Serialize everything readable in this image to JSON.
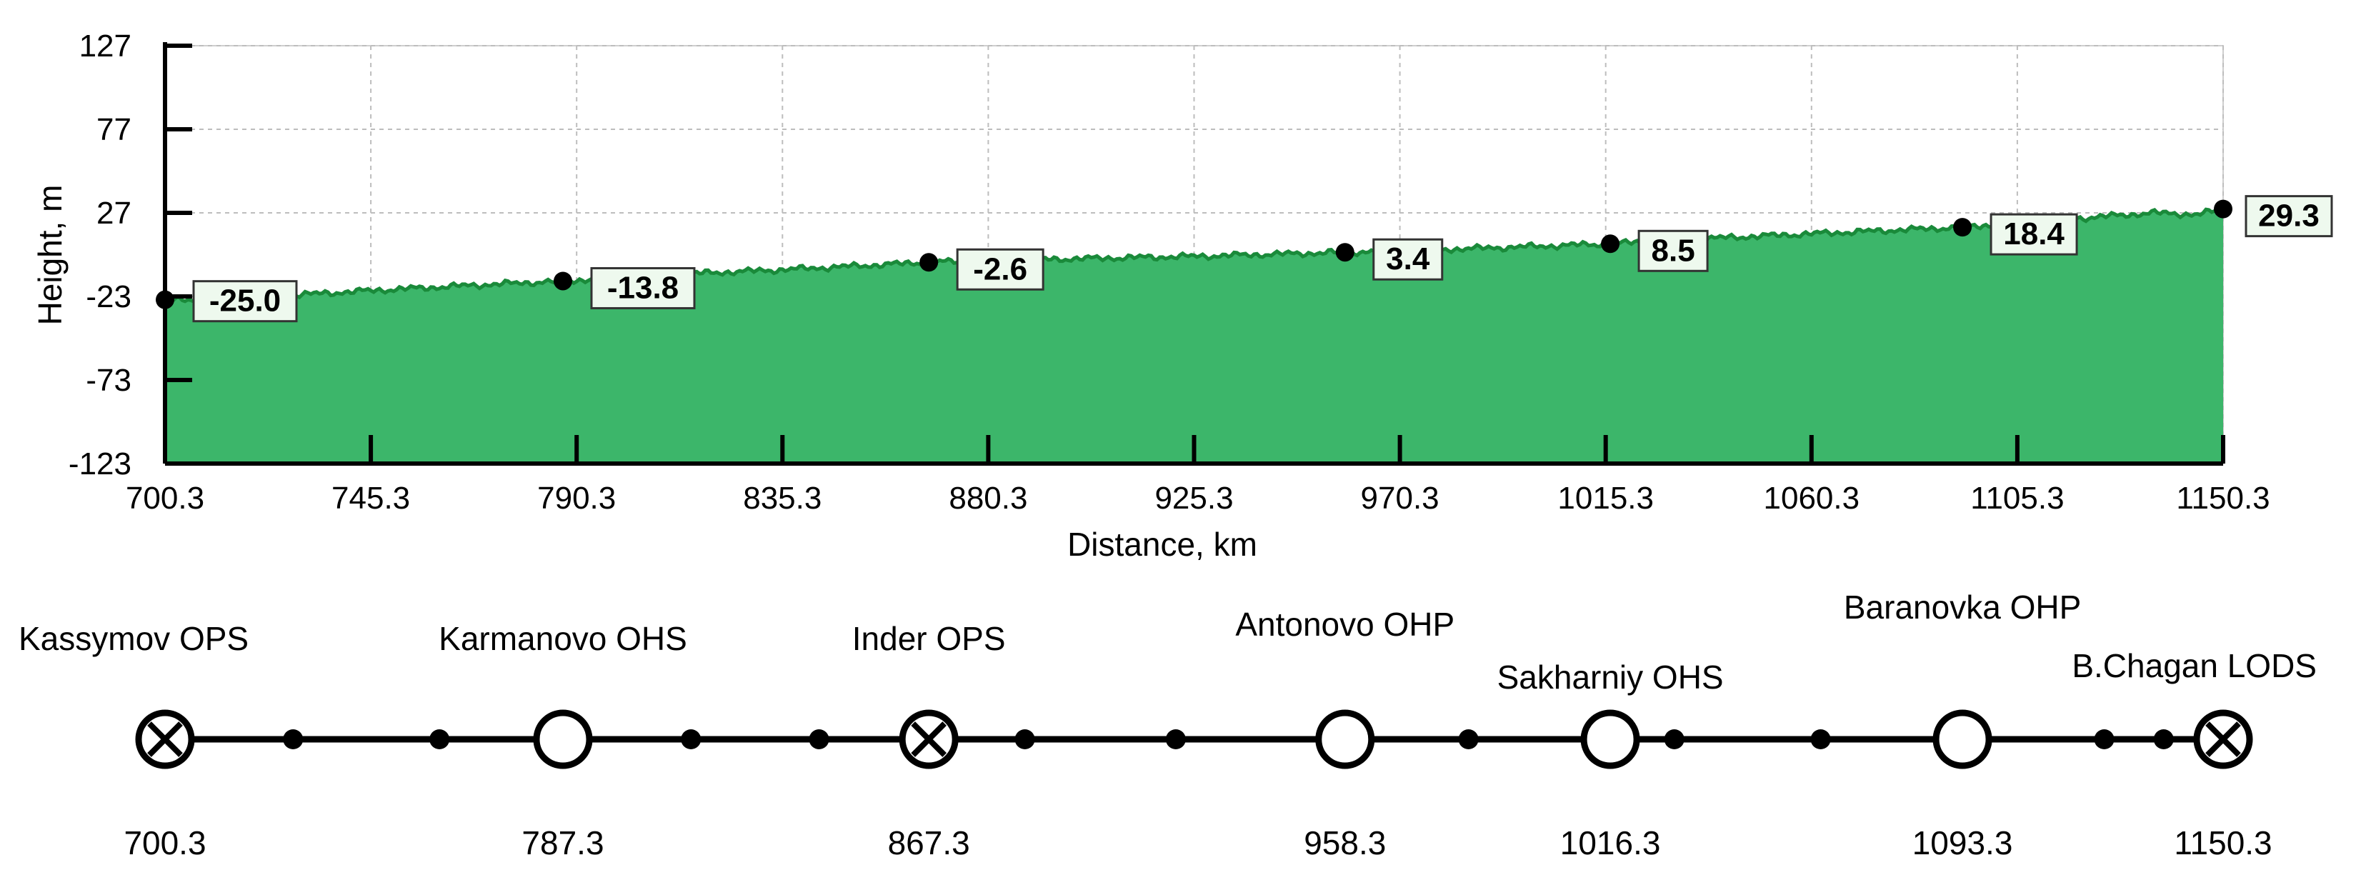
{
  "chart_data": {
    "type": "area",
    "xlabel": "Distance, km",
    "ylabel": "Height, m",
    "xlim": [
      700.3,
      1150.3
    ],
    "ylim": [
      -123,
      127
    ],
    "x_ticks": [
      "700.3",
      "745.3",
      "790.3",
      "835.3",
      "880.3",
      "925.3",
      "970.3",
      "1015.3",
      "1060.3",
      "1105.3",
      "1150.3"
    ],
    "y_ticks": [
      "127",
      "77",
      "27",
      "-23",
      "-73",
      "-123"
    ],
    "grid": true,
    "fill_color": "#3cb66a",
    "line_color": "#1a8a3a",
    "profile": {
      "x": [
        700.3,
        720,
        745.3,
        770,
        787.3,
        810,
        835.3,
        867.3,
        880.3,
        925.3,
        958.3,
        990,
        1016.3,
        1040,
        1060.3,
        1093.3,
        1105.3,
        1120,
        1135,
        1145,
        1150.3
      ],
      "y": [
        -25.0,
        -23.5,
        -19.5,
        -16,
        -13.8,
        -10,
        -7,
        -2.6,
        -1.5,
        1.0,
        3.4,
        6,
        8.5,
        12,
        14.5,
        18.4,
        21,
        24,
        27,
        26,
        29.3
      ]
    },
    "points": [
      {
        "x": 700.3,
        "y": -25.0,
        "label": "-25.0"
      },
      {
        "x": 787.3,
        "y": -13.8,
        "label": "-13.8"
      },
      {
        "x": 867.3,
        "y": -2.6,
        "label": "-2.6"
      },
      {
        "x": 958.3,
        "y": 3.4,
        "label": "3.4"
      },
      {
        "x": 1016.3,
        "y": 8.5,
        "label": "8.5"
      },
      {
        "x": 1093.3,
        "y": 18.4,
        "label": "18.4"
      },
      {
        "x": 1150.3,
        "y": 29.3,
        "label": "29.3"
      }
    ]
  },
  "route": {
    "stations": [
      {
        "name": "Kassymov OPS",
        "km": "700.3",
        "x": 700.3,
        "symbol": "crossed-circle"
      },
      {
        "name": "Karmanovo OHS",
        "km": "787.3",
        "x": 787.3,
        "symbol": "open-circle"
      },
      {
        "name": "Inder OPS",
        "km": "867.3",
        "x": 867.3,
        "symbol": "crossed-circle"
      },
      {
        "name": "Antonovo OHP",
        "km": "958.3",
        "x": 958.3,
        "symbol": "open-circle"
      },
      {
        "name": "Sakharniy OHS",
        "km": "1016.3",
        "x": 1016.3,
        "symbol": "open-circle"
      },
      {
        "name": "Baranovka OHP",
        "km": "1093.3",
        "x": 1093.3,
        "symbol": "open-circle"
      },
      {
        "name": "B.Chagan LODS",
        "km": "1150.3",
        "x": 1150.3,
        "symbol": "crossed-circle"
      }
    ],
    "small_points_km": [
      728.3,
      760.3,
      815.3,
      843.3,
      888.3,
      921.3,
      985.3,
      1030.3,
      1062.3,
      1124.3,
      1137.3
    ]
  }
}
